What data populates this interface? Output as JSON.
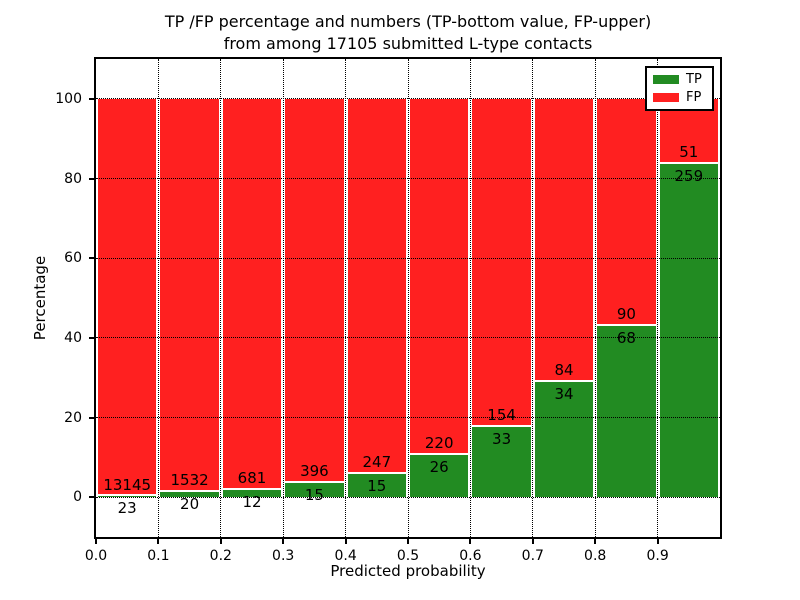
{
  "chart_data": {
    "type": "bar",
    "stacked_percent": true,
    "title_line1": "TP /FP percentage and numbers (TP-bottom value, FP-upper)",
    "title_line2": "from among 17105 submitted L-type contacts",
    "xlabel": "Predicted probability",
    "ylabel": "Percentage",
    "xlim": [
      0.0,
      1.0
    ],
    "ylim": [
      -10,
      110
    ],
    "x_ticks": [
      "0.0",
      "0.1",
      "0.2",
      "0.3",
      "0.4",
      "0.5",
      "0.6",
      "0.7",
      "0.8",
      "0.9"
    ],
    "y_ticks": [
      "0",
      "20",
      "40",
      "60",
      "80",
      "100"
    ],
    "bin_edges": [
      0.0,
      0.1,
      0.2,
      0.3,
      0.4,
      0.5,
      0.6,
      0.7,
      0.8,
      0.9,
      1.0
    ],
    "total_contacts": 17105,
    "series": [
      {
        "name": "TP",
        "color": "#228b22",
        "counts": [
          23,
          20,
          12,
          15,
          15,
          26,
          33,
          34,
          68,
          259
        ]
      },
      {
        "name": "FP",
        "color": "#ff2020",
        "counts": [
          13145,
          1532,
          681,
          396,
          247,
          220,
          154,
          84,
          90,
          51
        ]
      }
    ],
    "tp_percent": [
      0.17,
      1.29,
      1.73,
      3.65,
      5.73,
      10.57,
      17.65,
      28.81,
      43.04,
      83.55
    ],
    "legend": {
      "position": "upper right",
      "entries": [
        "TP",
        "FP"
      ]
    },
    "grid": {
      "linestyle": "dotted",
      "color": "#000000"
    },
    "colors": {
      "tp": "#228b22",
      "fp": "#ff2020",
      "background": "#ffffff",
      "text": "#000000"
    }
  }
}
